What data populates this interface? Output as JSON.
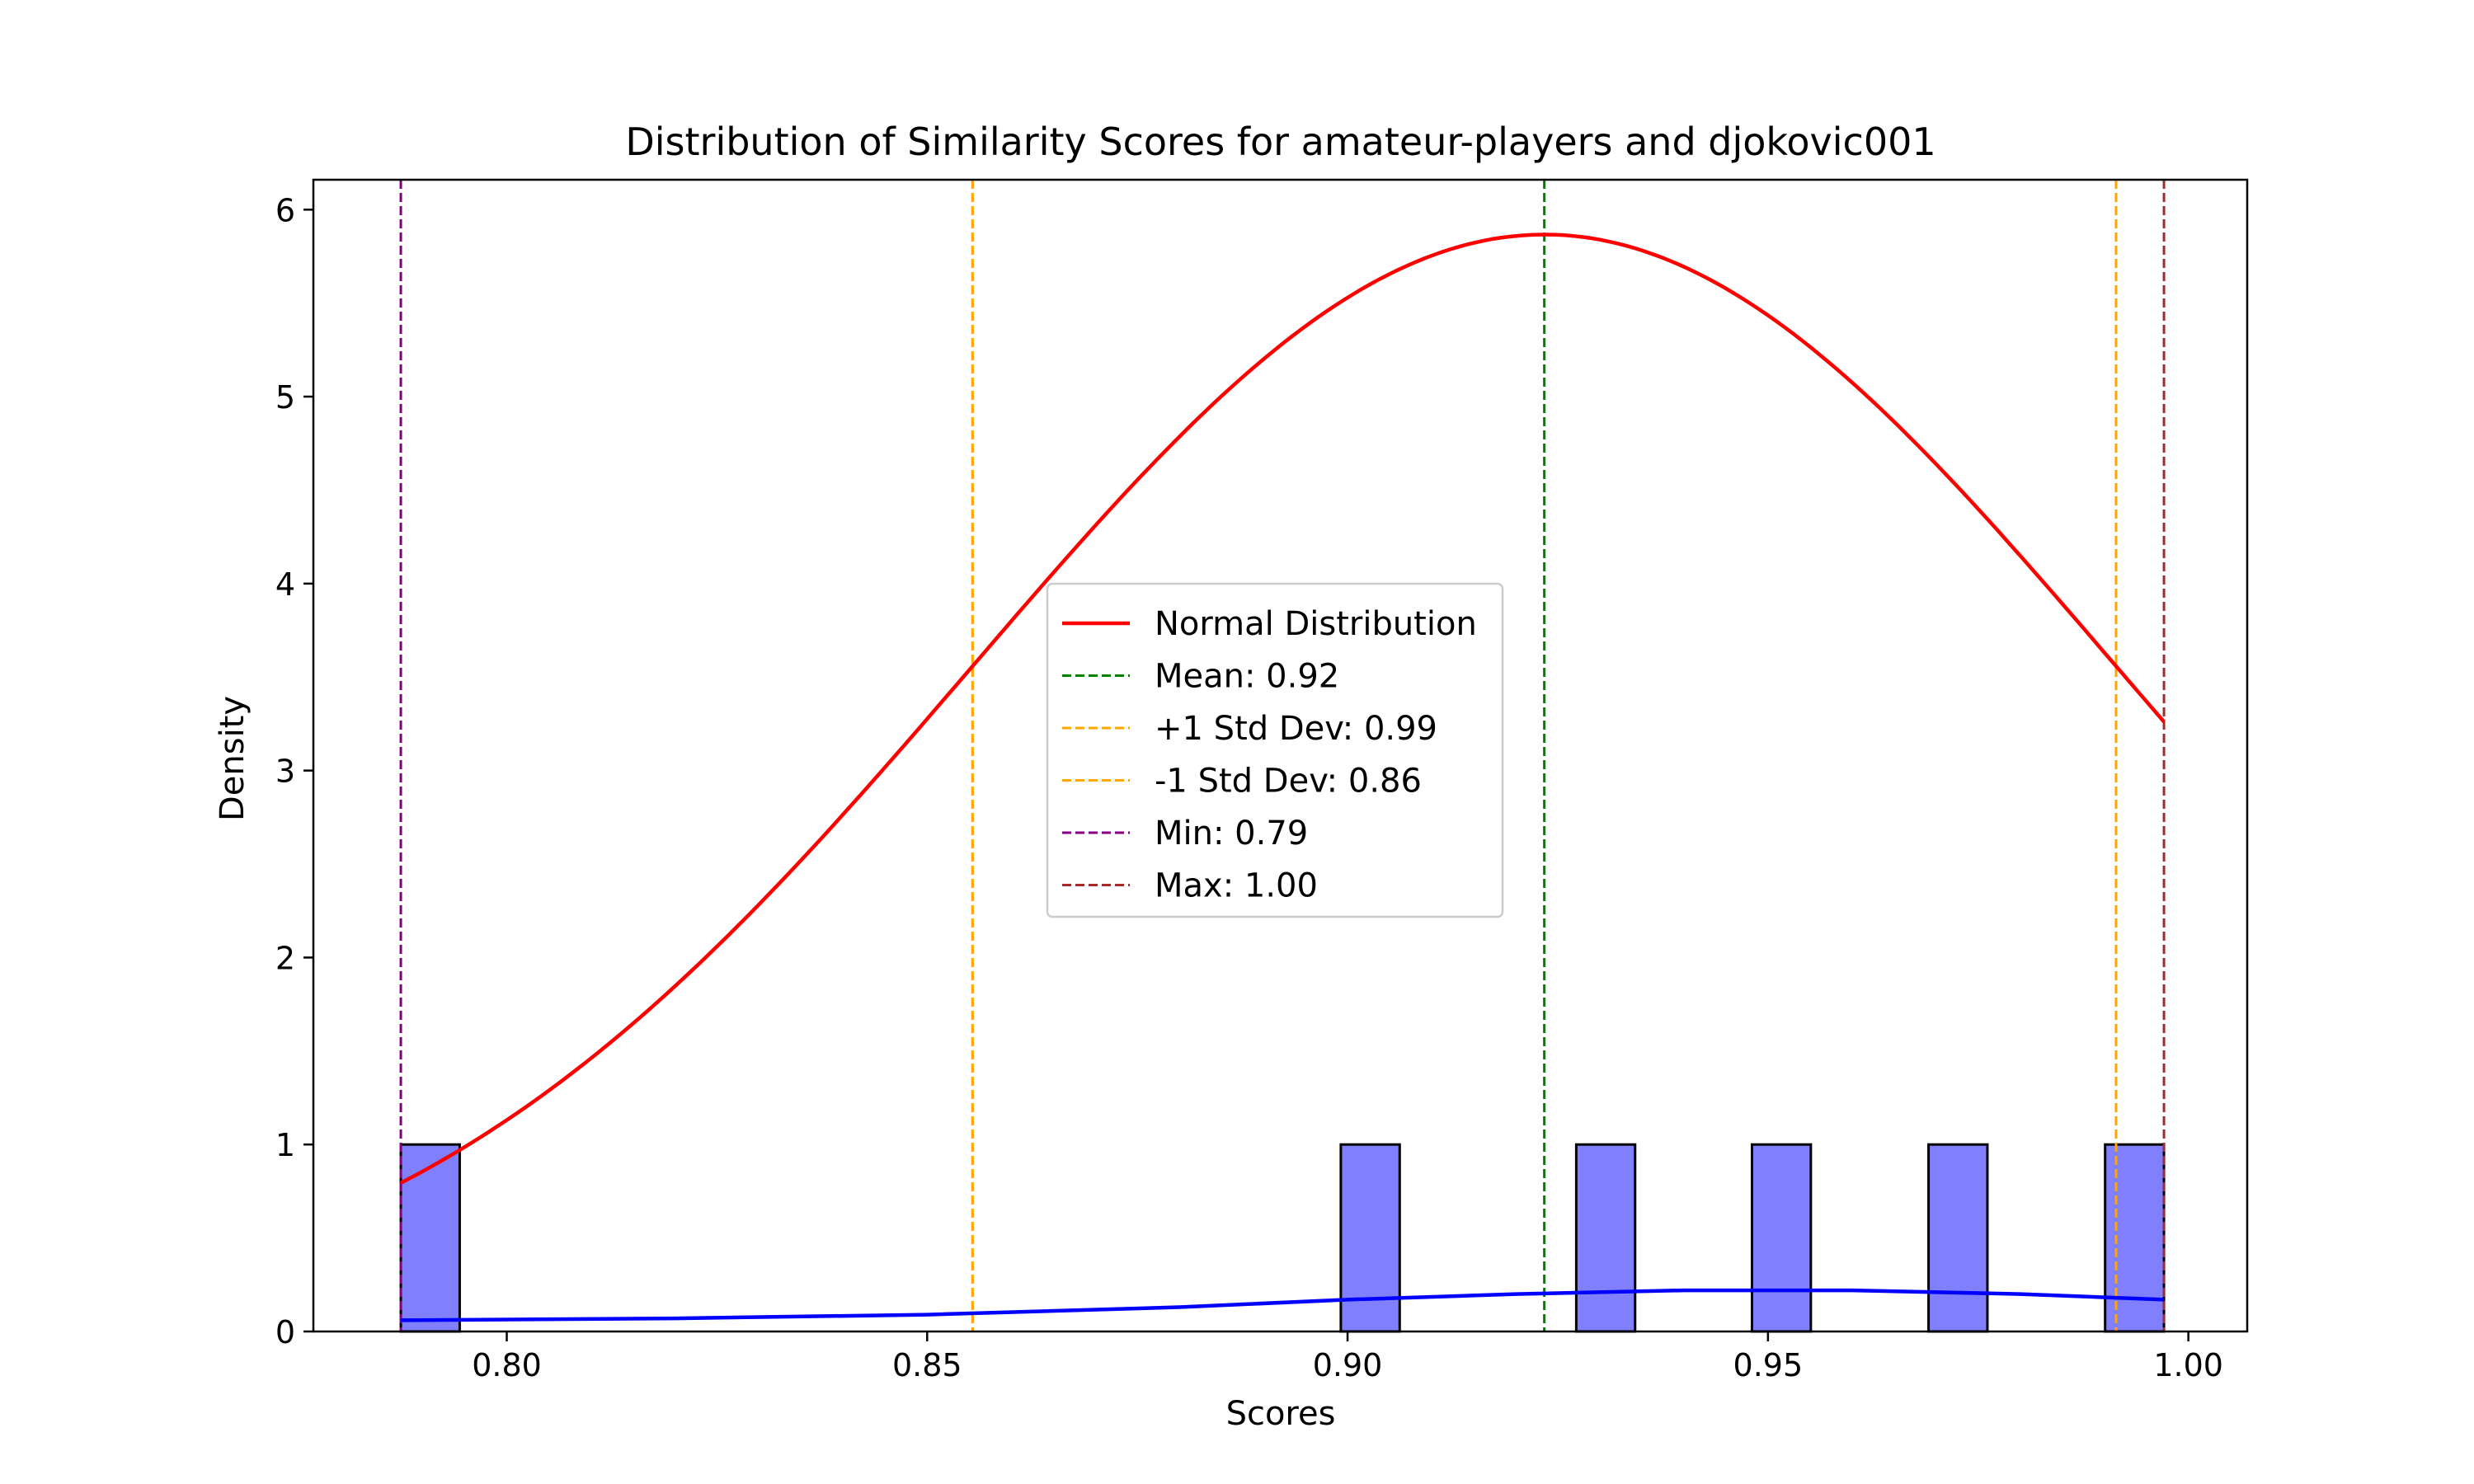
{
  "chart_data": {
    "type": "bar",
    "title": "Distribution of Similarity Scores for amateur-players and djokovic001",
    "xlabel": "Scores",
    "ylabel": "Density",
    "xlim": [
      0.777,
      1.007
    ],
    "ylim": [
      0,
      6.16
    ],
    "xticks": [
      0.8,
      0.85,
      0.9,
      0.95,
      1.0
    ],
    "xtick_labels": [
      "0.80",
      "0.85",
      "0.90",
      "0.95",
      "1.00"
    ],
    "yticks": [
      0,
      1,
      2,
      3,
      4,
      5,
      6
    ],
    "ytick_labels": [
      "0",
      "1",
      "2",
      "3",
      "4",
      "5",
      "6"
    ],
    "grid": false,
    "legend_position": "center",
    "histogram": {
      "color": "#8080ff",
      "edgecolor": "#000000",
      "bins": [
        {
          "x0": 0.7874,
          "x1": 0.7944,
          "density": 1
        },
        {
          "x0": 0.8992,
          "x1": 0.9062,
          "density": 1
        },
        {
          "x0": 0.9272,
          "x1": 0.9342,
          "density": 1
        },
        {
          "x0": 0.9481,
          "x1": 0.9551,
          "density": 1
        },
        {
          "x0": 0.9691,
          "x1": 0.9761,
          "density": 1
        },
        {
          "x0": 0.9901,
          "x1": 0.9971,
          "density": 1
        }
      ]
    },
    "normal_curve": {
      "name": "Normal Distribution",
      "color": "#ff0000",
      "mean": 0.9234,
      "std": 0.068,
      "x_range": [
        0.7874,
        0.9971
      ]
    },
    "kde_curve": {
      "color": "#0000ff",
      "points": [
        [
          0.7874,
          0.06
        ],
        [
          0.82,
          0.07
        ],
        [
          0.85,
          0.09
        ],
        [
          0.88,
          0.13
        ],
        [
          0.9,
          0.17
        ],
        [
          0.92,
          0.2
        ],
        [
          0.94,
          0.22
        ],
        [
          0.96,
          0.22
        ],
        [
          0.98,
          0.2
        ],
        [
          0.9971,
          0.17
        ]
      ]
    },
    "vlines": [
      {
        "label": "Mean: 0.92",
        "x": 0.9234,
        "color": "#008000"
      },
      {
        "label": "+1 Std Dev: 0.99",
        "x": 0.9914,
        "color": "#ffa500"
      },
      {
        "label": "-1 Std Dev: 0.86",
        "x": 0.8554,
        "color": "#ffa500"
      },
      {
        "label": "Min: 0.79",
        "x": 0.7874,
        "color": "#800080"
      },
      {
        "label": "Max: 1.00",
        "x": 0.9971,
        "color": "#a52a2a"
      }
    ]
  }
}
